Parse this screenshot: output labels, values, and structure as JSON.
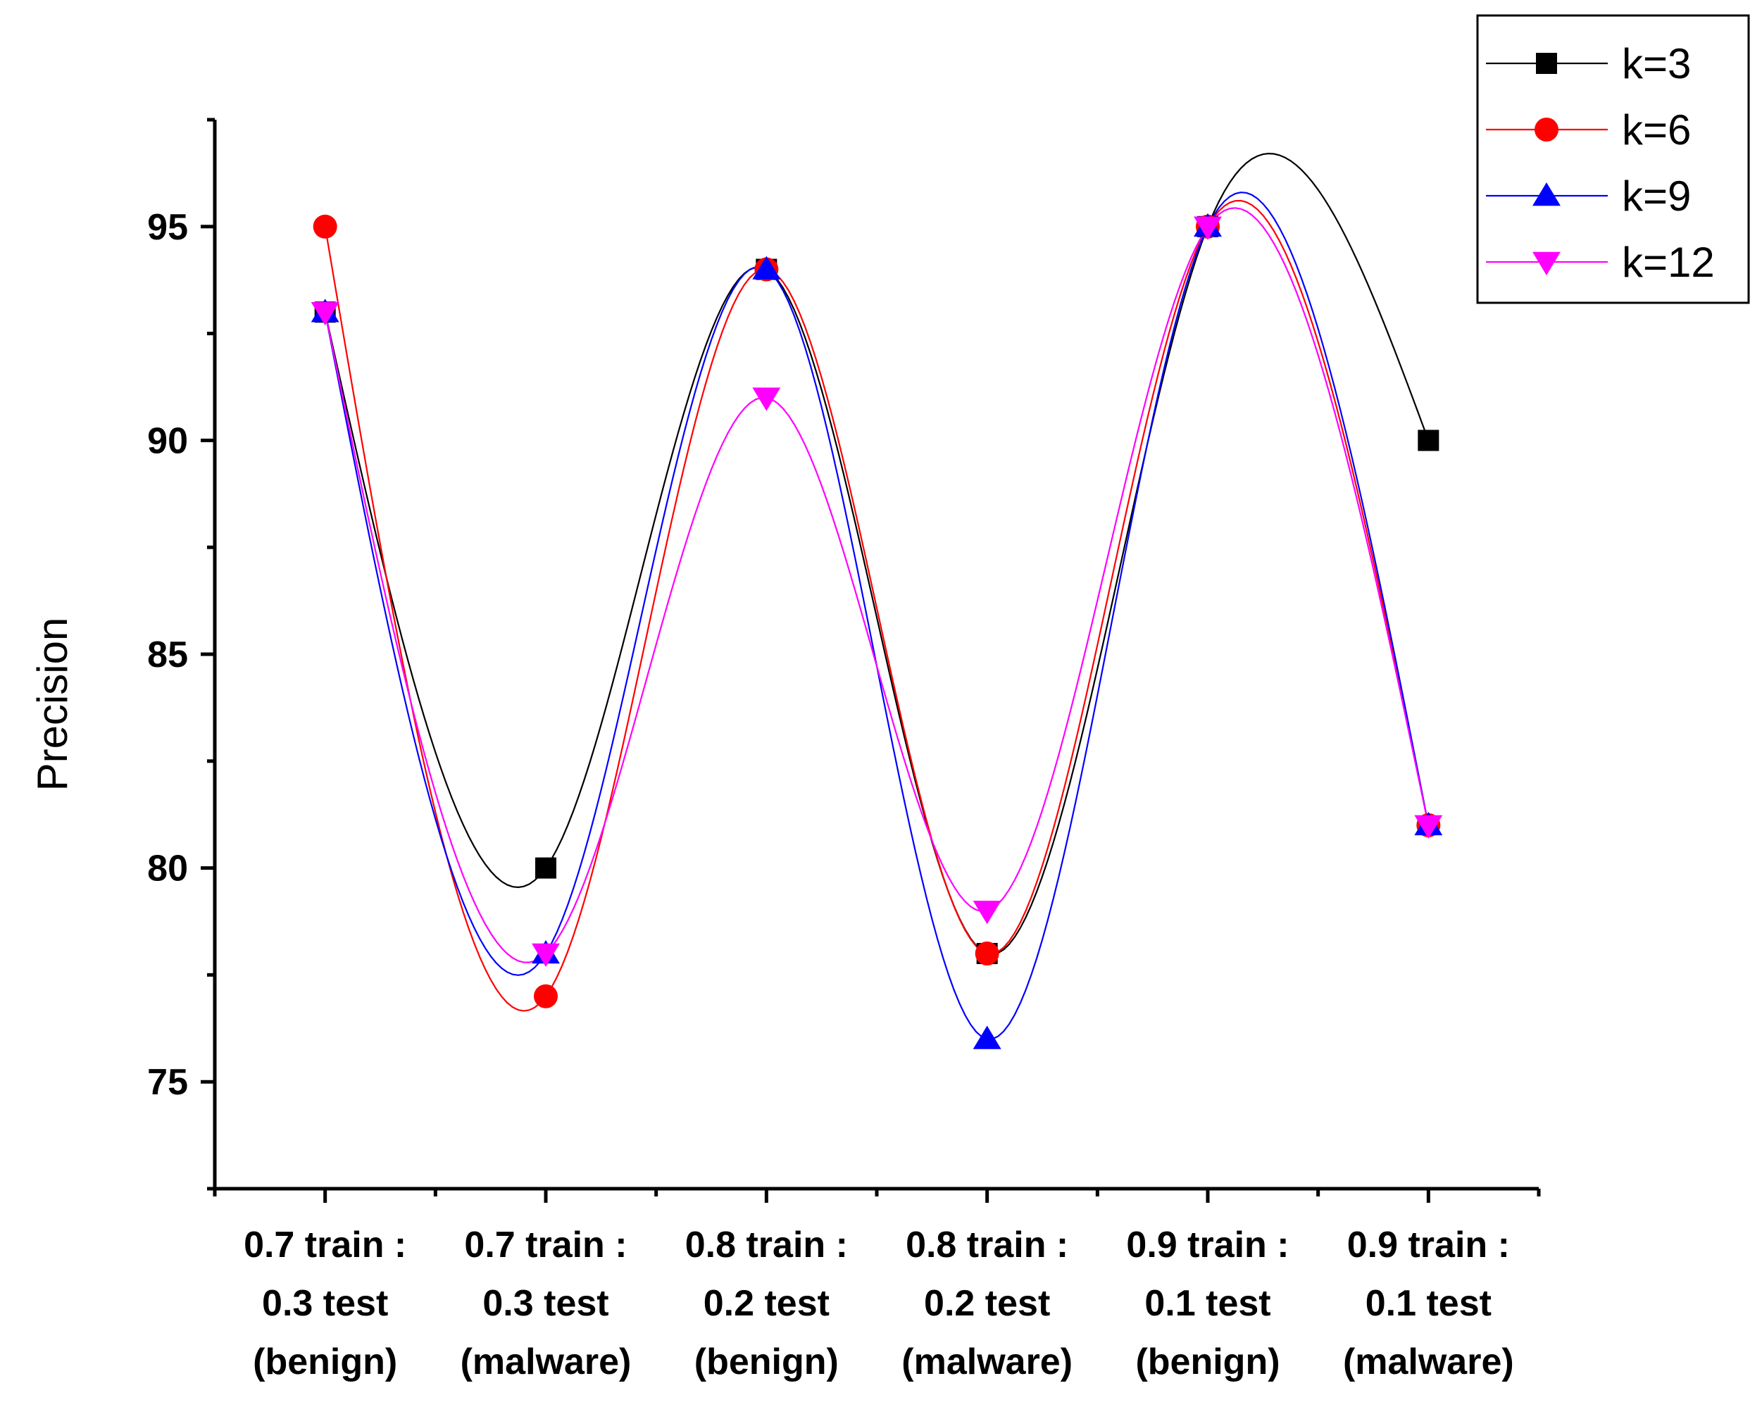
{
  "chart_data": {
    "type": "line",
    "title": "",
    "xlabel": "",
    "ylabel": "Precision",
    "ylim": [
      72.5,
      97.5
    ],
    "yticks": [
      75,
      80,
      85,
      90,
      95
    ],
    "yticks_labels": [
      "75",
      "80",
      "85",
      "90",
      "95"
    ],
    "grid": false,
    "legend_position": "top-right",
    "categories": [
      [
        "0.7 train :",
        "0.3 test",
        "(benign)"
      ],
      [
        "0.7 train :",
        "0.3 test",
        "(malware)"
      ],
      [
        "0.8 train :",
        "0.2 test",
        "(benign)"
      ],
      [
        "0.8 train :",
        "0.2 test",
        "(malware)"
      ],
      [
        "0.9 train :",
        "0.1 test",
        "(benign)"
      ],
      [
        "0.9 train :",
        "0.1 test",
        "(malware)"
      ]
    ],
    "series": [
      {
        "name": "k=3",
        "color": "#000000",
        "marker": "square",
        "values": [
          93,
          80,
          94,
          78,
          95,
          90
        ]
      },
      {
        "name": "k=6",
        "color": "#ff0000",
        "marker": "circle",
        "values": [
          95,
          77,
          94,
          78,
          95,
          81
        ]
      },
      {
        "name": "k=9",
        "color": "#0000ff",
        "marker": "triangle-up",
        "values": [
          93,
          78,
          94,
          76,
          95,
          81
        ]
      },
      {
        "name": "k=12",
        "color": "#ff00ff",
        "marker": "triangle-down",
        "values": [
          93,
          78,
          91,
          79,
          95,
          81
        ]
      }
    ]
  }
}
